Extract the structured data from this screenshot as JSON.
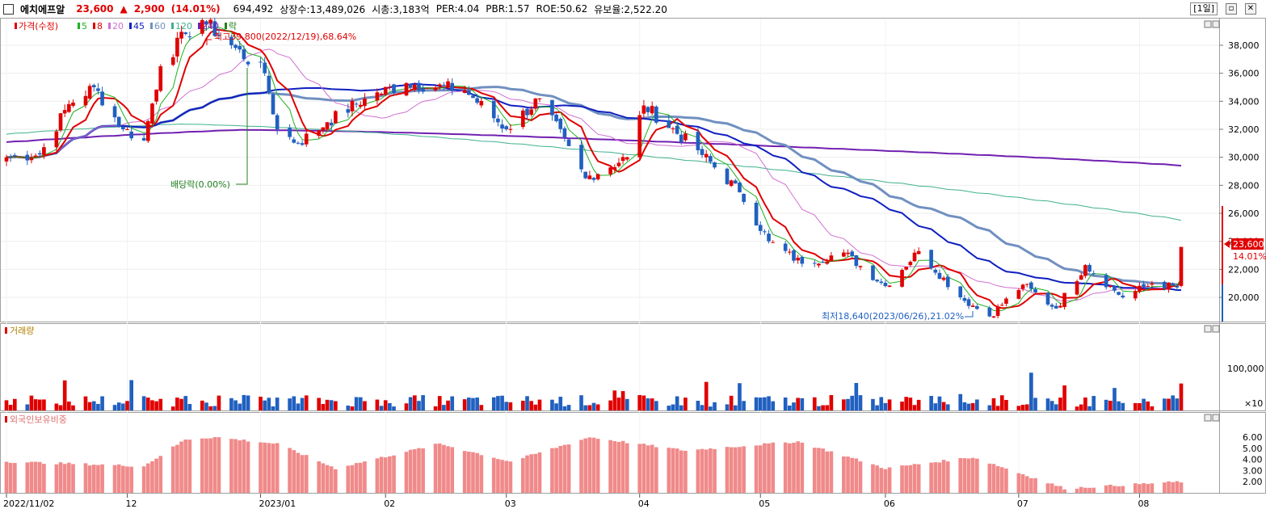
{
  "header": {
    "stock_name": "에치에프알",
    "price": "23,600",
    "change_arrow": "▲",
    "change": "2,900",
    "change_pct": "(14.01%)",
    "volume": "694,492",
    "listed_shares": "상장수:13,489,026",
    "market_cap": "시총:3,183억",
    "per": "PER:4.04",
    "pbr": "PBR:1.57",
    "roe": "ROE:50.62",
    "float_ratio": "유보율:2,522.20",
    "period": "[1일]",
    "colors": {
      "up": "#e00000",
      "down": "#2060c0"
    }
  },
  "price_panel": {
    "legend": [
      {
        "label": "가격(수정)",
        "color": "#e00000"
      },
      {
        "label": "5",
        "color": "#20b020"
      },
      {
        "label": "8",
        "color": "#e00000"
      },
      {
        "label": "20",
        "color": "#d070d0"
      },
      {
        "label": "45",
        "color": "#1020c0"
      },
      {
        "label": "60",
        "color": "#7090c0"
      },
      {
        "label": "120",
        "color": "#40b090"
      },
      {
        "label": "240",
        "color": "#7020b0"
      },
      {
        "label": "락",
        "color": "#208020"
      }
    ],
    "high_note": "최고39,800(2022/12/19),68.64%",
    "low_note": "최저18,640(2023/06/26),21.02%",
    "dividend_note": "배당락(0.00%)",
    "y_ticks": [
      "38,000",
      "36,000",
      "34,000",
      "32,000",
      "30,000",
      "28,000",
      "26,000",
      "24,000",
      "22,000",
      "20,000"
    ],
    "current_tag": "23,600",
    "current_pct": "14.01%"
  },
  "volume_panel": {
    "title": "거래량",
    "y_ticks": [
      "100,000"
    ],
    "multiplier": "×10"
  },
  "foreign_panel": {
    "title": "외국인보유비중",
    "y_ticks": [
      "6.00",
      "5.00",
      "4.00",
      "3.00",
      "2.00"
    ]
  },
  "x_axis": [
    "2022/11/02",
    "12",
    "2023/01",
    "02",
    "03",
    "04",
    "05",
    "06",
    "07",
    "08"
  ],
  "chart_data": {
    "type": "candlestick",
    "period": "daily",
    "x_range": [
      "2022/11/02",
      "2023/08"
    ],
    "price_ylim": [
      18500,
      39500
    ],
    "anchors": [
      {
        "date": "2022/11/02",
        "close": 30000
      },
      {
        "date": "2022/11/10",
        "close": 30200
      },
      {
        "date": "2022/11/17",
        "close": 33800
      },
      {
        "date": "2022/11/23",
        "close": 35000
      },
      {
        "date": "2022/11/30",
        "close": 32000
      },
      {
        "date": "2022/12/05",
        "close": 31200
      },
      {
        "date": "2022/12/09",
        "close": 36500
      },
      {
        "date": "2022/12/15",
        "close": 38800
      },
      {
        "date": "2022/12/19",
        "close": 39800
      },
      {
        "date": "2022/12/26",
        "close": 38000
      },
      {
        "date": "2023/01/03",
        "close": 36000
      },
      {
        "date": "2023/01/06",
        "close": 32000
      },
      {
        "date": "2023/01/11",
        "close": 31000
      },
      {
        "date": "2023/01/18",
        "close": 32500
      },
      {
        "date": "2023/01/27",
        "close": 34200
      },
      {
        "date": "2023/02/06",
        "close": 35300
      },
      {
        "date": "2023/02/20",
        "close": 34800
      },
      {
        "date": "2023/03/02",
        "close": 32000
      },
      {
        "date": "2023/03/10",
        "close": 34200
      },
      {
        "date": "2023/03/21",
        "close": 28500
      },
      {
        "date": "2023/03/31",
        "close": 30000
      },
      {
        "date": "2023/04/04",
        "close": 33700
      },
      {
        "date": "2023/04/17",
        "close": 30500
      },
      {
        "date": "2023/04/27",
        "close": 27500
      },
      {
        "date": "2023/05/04",
        "close": 24000
      },
      {
        "date": "2023/05/12",
        "close": 22400
      },
      {
        "date": "2023/05/22",
        "close": 23200
      },
      {
        "date": "2023/06/01",
        "close": 20800
      },
      {
        "date": "2023/06/09",
        "close": 23300
      },
      {
        "date": "2023/06/19",
        "close": 20000
      },
      {
        "date": "2023/06/26",
        "close": 18640
      },
      {
        "date": "2023/07/04",
        "close": 20900
      },
      {
        "date": "2023/07/12",
        "close": 19200
      },
      {
        "date": "2023/07/19",
        "close": 22300
      },
      {
        "date": "2023/07/28",
        "close": 20000
      },
      {
        "date": "2023/08/04",
        "close": 21000
      },
      {
        "date": "2023/08/10",
        "close": 20700
      },
      {
        "date": "2023/08/11",
        "close": 23600
      }
    ],
    "ma240_end": 29400,
    "ma120_end": 25500,
    "foreign_ratio_anchors": [
      {
        "date": "2022/11/02",
        "value": 3.8
      },
      {
        "date": "2022/12/05",
        "value": 3.4
      },
      {
        "date": "2022/12/15",
        "value": 5.8
      },
      {
        "date": "2022/12/22",
        "value": 6.0
      },
      {
        "date": "2023/01/06",
        "value": 5.4
      },
      {
        "date": "2023/01/20",
        "value": 3.2
      },
      {
        "date": "2023/02/14",
        "value": 5.4
      },
      {
        "date": "2023/03/03",
        "value": 3.8
      },
      {
        "date": "2023/03/22",
        "value": 6.0
      },
      {
        "date": "2023/04/14",
        "value": 4.8
      },
      {
        "date": "2023/05/11",
        "value": 5.6
      },
      {
        "date": "2023/06/01",
        "value": 3.2
      },
      {
        "date": "2023/06/22",
        "value": 4.2
      },
      {
        "date": "2023/07/14",
        "value": 1.4
      },
      {
        "date": "2023/08/11",
        "value": 2.0
      }
    ],
    "volume_max": 200000
  }
}
